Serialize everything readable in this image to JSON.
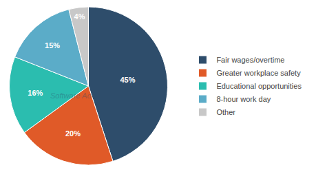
{
  "chart_data": {
    "type": "pie",
    "categories": [
      "Fair wages/overtime",
      "Greater workplace safety",
      "Educational opportunities",
      "8-hour work day",
      "Other"
    ],
    "values": [
      45,
      20,
      16,
      15,
      4
    ],
    "value_labels": [
      "45%",
      "20%",
      "16%",
      "15%",
      "4%"
    ],
    "colors": [
      "#2e4d6b",
      "#e05a28",
      "#2bbdaf",
      "#5bacc8",
      "#c8c8c8"
    ],
    "data_labels": true,
    "legend": "right",
    "annotations": [
      "Software Advice"
    ]
  }
}
